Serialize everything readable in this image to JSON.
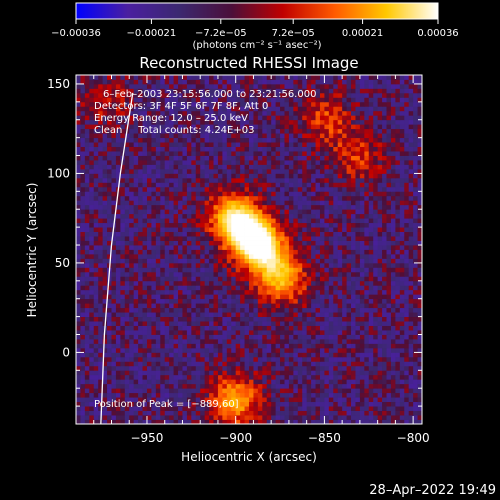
{
  "chart_data": {
    "type": "heatmap",
    "title": "Reconstructed RHESSI Image",
    "xlabel": "Heliocentric X (arcsec)",
    "ylabel": "Heliocentric Y (arcsec)",
    "xlim": [
      -990,
      -795
    ],
    "ylim": [
      -40,
      155
    ],
    "x_ticks": [
      {
        "value": -950,
        "label": "−950"
      },
      {
        "value": -900,
        "label": "−900"
      },
      {
        "value": -850,
        "label": "−850"
      },
      {
        "value": -800,
        "label": "−800"
      }
    ],
    "y_ticks": [
      {
        "value": 0,
        "label": "0"
      },
      {
        "value": 50,
        "label": "50"
      },
      {
        "value": 100,
        "label": "100"
      },
      {
        "value": 150,
        "label": "150"
      }
    ],
    "colorbar": {
      "range": [
        -0.00036,
        0.00036
      ],
      "ticks": [
        {
          "value": -0.00036,
          "label": "−0.00036"
        },
        {
          "value": -0.00021,
          "label": "−0.00021"
        },
        {
          "value": -7.2e-05,
          "label": "−7.2e−05"
        },
        {
          "value": 7.2e-05,
          "label": "7.2e−05"
        },
        {
          "value": 0.00021,
          "label": "0.00021"
        },
        {
          "value": 0.00036,
          "label": "0.00036"
        }
      ],
      "unit_label": "(photons cm⁻² s⁻¹ asec⁻²)",
      "colormap": [
        "#0000ff",
        "#4a1fa0",
        "#3c2870",
        "#4b0f3a",
        "#c00000",
        "#ff5a00",
        "#ffc800",
        "#ffffff"
      ]
    },
    "annotations": {
      "time_range": "6–Feb–2003 23:15:56.000 to 23:21:56.000",
      "detectors": "Detectors: 3F 4F 5F 6F 7F 8F, Att 0",
      "energy_range": "Energy Range: 12.0 – 25.0 keV",
      "method_counts": "Clean     Total counts: 4.24E+03",
      "peak": "Position of Peak = [−889,60]"
    },
    "peak_position": [
      -889,
      60
    ],
    "sources": [
      {
        "x": -889,
        "y": 60,
        "peak": 0.00036
      },
      {
        "x": -903,
        "y": 75,
        "peak": 0.00028
      },
      {
        "x": -875,
        "y": 40,
        "peak": 0.00025
      },
      {
        "x": -850,
        "y": 130,
        "peak": 0.00016
      },
      {
        "x": -832,
        "y": 108,
        "peak": 0.00015
      },
      {
        "x": -902,
        "y": -28,
        "peak": 0.00026
      },
      {
        "x": -975,
        "y": 140,
        "peak": 0.00012
      }
    ],
    "limb_arc": [
      [
        -976,
        -40
      ],
      [
        -974,
        10
      ],
      [
        -970,
        60
      ],
      [
        -965,
        100
      ],
      [
        -958,
        145
      ]
    ]
  },
  "footer": {
    "timestamp": "28–Apr–2022 19:49"
  }
}
